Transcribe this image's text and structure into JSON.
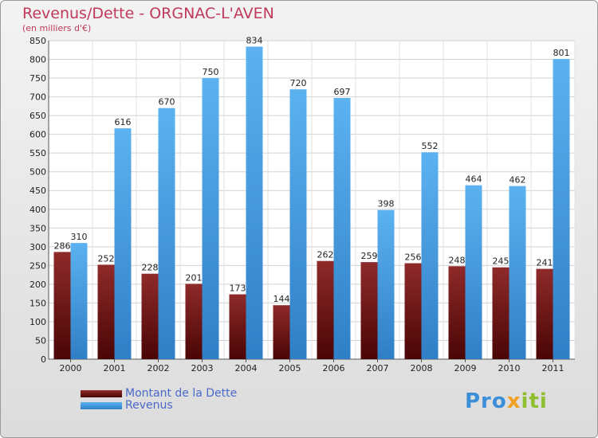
{
  "chart_data": {
    "type": "bar",
    "title": "Revenus/Dette - ORGNAC-L'AVEN",
    "subtitle": "(en milliers d'€)",
    "categories": [
      "2000",
      "2001",
      "2002",
      "2003",
      "2004",
      "2005",
      "2006",
      "2007",
      "2008",
      "2009",
      "2010",
      "2011"
    ],
    "series": [
      {
        "name": "Montant de la Dette",
        "color": "#7a1518",
        "values": [
          286,
          252,
          228,
          201,
          173,
          144,
          262,
          259,
          256,
          248,
          245,
          241
        ]
      },
      {
        "name": "Revenus",
        "color": "#4aa3e8",
        "values": [
          310,
          616,
          670,
          750,
          834,
          720,
          697,
          398,
          552,
          464,
          462,
          801
        ]
      }
    ],
    "ylim": [
      0,
      850
    ],
    "yticks": [
      0,
      50,
      100,
      150,
      200,
      250,
      300,
      350,
      400,
      450,
      500,
      550,
      600,
      650,
      700,
      750,
      800,
      850
    ],
    "grid": true,
    "legend": "bottom-left"
  },
  "logo_text": "Proxiti"
}
